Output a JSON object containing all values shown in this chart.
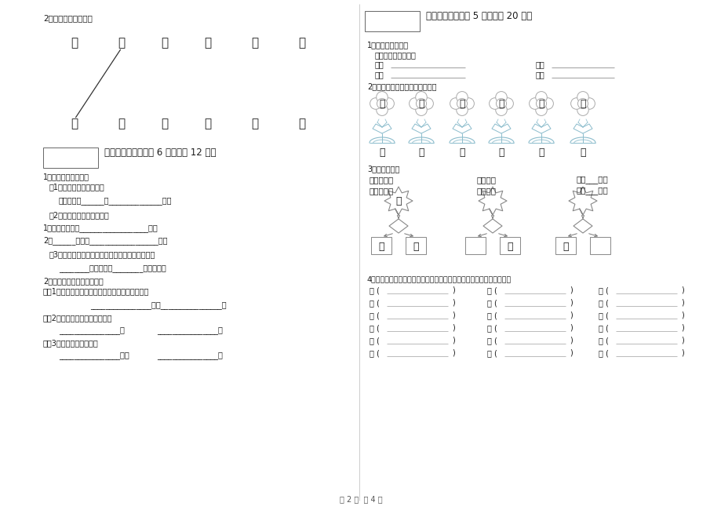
{
  "bg_color": "#ffffff",
  "page_num_text": "第 2 页  共 4 页",
  "left": {
    "q2_title": "2、照样子，连一连。",
    "top_row": [
      "近",
      "无",
      "来",
      "少",
      "黑",
      "正"
    ],
    "bot_row": [
      "有",
      "去",
      "远",
      "反",
      "多",
      "白"
    ],
    "section5_title": "五、补充句子（每题 6 分，共计 12 分）",
    "s5_q1": "1、照样子，写句子。",
    "s5_e1": "例1：美丽的小路好亮啊！",
    "s5_fill1": "　　美丽的______好______________啊！",
    "s5_e2": "例2：我们正忙着搬东西呢！",
    "s5_fill2a": "1、李老师正忙着__________________呢！",
    "s5_fill2b": "2、______正忙着__________________呢！",
    "s5_e3": "例3：植物园既大很大，里面的花草树木很多很多。",
    "s5_fill3": "________很大很大，________很多很多。",
    "s5_q2": "2、把下面的句子补充完整。",
    "s5_q2a": "　（1）我和妈妈一边散步，一边欣赏美丽的风景。",
    "s5_fill4": "________________一边________________。",
    "s5_q2b": "　（2）李老师正忙着改作业呢！",
    "s5_fill5a": "________________正",
    "s5_fill5b": "________________。",
    "s5_q2c": "　（3）天气渐渐热起来。",
    "s5_fill6a": "________________渐渐",
    "s5_fill6b": "________________。"
  },
  "right": {
    "section6_title": "六、综合题（每题 5 分，共计 20 分）",
    "s6_q1": "1、照样子写一写。",
    "s6_e1": "例：看看　　看一看",
    "s6_items": [
      {
        "left_word": "比比",
        "right_word": "听听"
      },
      {
        "left_word": "走走",
        "right_word": "想想"
      }
    ],
    "s6_q2": "2、请你把意思相反的字连起来。",
    "flower_row1": [
      "长",
      "去",
      "近",
      "有",
      "热",
      "左"
    ],
    "flower_row2": [
      "来",
      "无",
      "短",
      "远",
      "右",
      "冷"
    ],
    "s6_q3": "3、快乐加减。",
    "math_row1": [
      "走＋千＝赶",
      "日＋月＝",
      "立＋___＝童"
    ],
    "math_row2": [
      "叶－口＝十",
      "会－人＝",
      "番－___＝日"
    ],
    "tree1_top": "秋",
    "tree1_bl": "禾",
    "tree1_br": "火",
    "tree2_bl": "",
    "tree2_bm": "下",
    "tree2_br": "门",
    "tree3_empty": true,
    "s6_q4": "4、加一加，你能把下列汉字加一个笔画变成另一个字吗？看谁变得多！",
    "table_data": [
      [
        [
          "日",
          ""
        ],
        [
          "目",
          ""
        ],
        [
          "云",
          ""
        ]
      ],
      [
        [
          "土",
          ""
        ],
        [
          "米",
          ""
        ],
        [
          "木",
          ""
        ]
      ],
      [
        [
          "万",
          ""
        ],
        [
          "司",
          ""
        ],
        [
          "一",
          ""
        ]
      ],
      [
        [
          "小",
          ""
        ],
        [
          "王",
          ""
        ],
        [
          "大",
          ""
        ]
      ],
      [
        [
          "鸟",
          ""
        ],
        [
          "河",
          ""
        ],
        [
          "牛",
          ""
        ]
      ],
      [
        [
          "水",
          ""
        ],
        [
          "人",
          ""
        ],
        [
          "丁",
          ""
        ]
      ]
    ]
  }
}
